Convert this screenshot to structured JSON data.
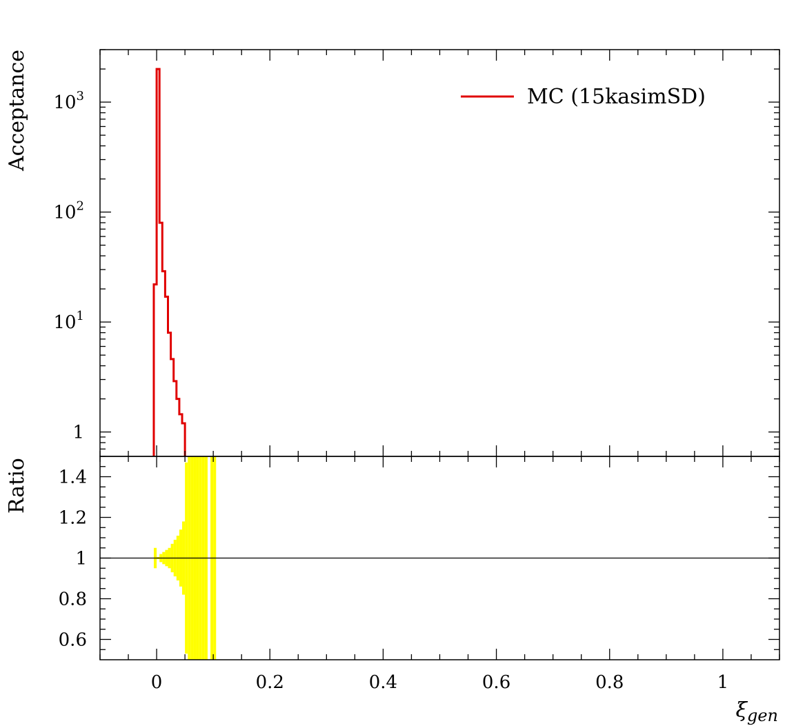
{
  "chart_data": [
    {
      "type": "line",
      "panel": "main",
      "ylabel": "Acceptance",
      "yscale": "log",
      "xlim": [
        -0.1,
        1.1
      ],
      "ylim": [
        0.6,
        3000
      ],
      "yticks": [
        {
          "value": 1,
          "label": "1"
        },
        {
          "value": 10,
          "label": "10",
          "exp": "1"
        },
        {
          "value": 100,
          "label": "10",
          "exp": "2"
        },
        {
          "value": 1000,
          "label": "10",
          "exp": "3"
        }
      ],
      "legend": {
        "position": "top-right",
        "entries": [
          "MC (15kasimSD)"
        ]
      },
      "series": [
        {
          "name": "MC (15kasimSD)",
          "color": "#e00000",
          "drawstyle": "steps",
          "bins": [
            {
              "lo": -0.005,
              "hi": 0.0,
              "y": 22
            },
            {
              "lo": 0.0,
              "hi": 0.005,
              "y": 2000
            },
            {
              "lo": 0.005,
              "hi": 0.01,
              "y": 80
            },
            {
              "lo": 0.01,
              "hi": 0.015,
              "y": 29
            },
            {
              "lo": 0.015,
              "hi": 0.02,
              "y": 17
            },
            {
              "lo": 0.02,
              "hi": 0.025,
              "y": 8
            },
            {
              "lo": 0.025,
              "hi": 0.03,
              "y": 4.6
            },
            {
              "lo": 0.03,
              "hi": 0.035,
              "y": 2.9
            },
            {
              "lo": 0.035,
              "hi": 0.04,
              "y": 2.0
            },
            {
              "lo": 0.04,
              "hi": 0.045,
              "y": 1.45
            },
            {
              "lo": 0.045,
              "hi": 0.05,
              "y": 1.2
            }
          ]
        }
      ],
      "grid": false
    },
    {
      "type": "area",
      "panel": "ratio",
      "ylabel": "Ratio",
      "xlabel": "ξ",
      "xlabel_sub": "gen",
      "xlim": [
        -0.1,
        1.1
      ],
      "ylim": [
        0.5,
        1.5
      ],
      "xticks": [
        {
          "value": 0,
          "label": "0"
        },
        {
          "value": 0.2,
          "label": "0.2"
        },
        {
          "value": 0.4,
          "label": "0.4"
        },
        {
          "value": 0.6,
          "label": "0.6"
        },
        {
          "value": 0.8,
          "label": "0.8"
        },
        {
          "value": 1,
          "label": "1"
        }
      ],
      "yticks": [
        {
          "value": 0.6,
          "label": "0.6"
        },
        {
          "value": 0.8,
          "label": "0.8"
        },
        {
          "value": 1.0,
          "label": "1"
        },
        {
          "value": 1.2,
          "label": "1.2"
        },
        {
          "value": 1.4,
          "label": "1.4"
        }
      ],
      "reference_line": 1,
      "band_color": "#ffff00",
      "band": [
        {
          "lo": -0.005,
          "hi": 0.0,
          "ymin": 0.95,
          "ymax": 1.05
        },
        {
          "lo": 0.0,
          "hi": 0.005,
          "ymin": 0.995,
          "ymax": 1.005
        },
        {
          "lo": 0.005,
          "hi": 0.01,
          "ymin": 0.98,
          "ymax": 1.02
        },
        {
          "lo": 0.01,
          "hi": 0.015,
          "ymin": 0.97,
          "ymax": 1.03
        },
        {
          "lo": 0.015,
          "hi": 0.02,
          "ymin": 0.96,
          "ymax": 1.04
        },
        {
          "lo": 0.02,
          "hi": 0.025,
          "ymin": 0.95,
          "ymax": 1.05
        },
        {
          "lo": 0.025,
          "hi": 0.03,
          "ymin": 0.93,
          "ymax": 1.07
        },
        {
          "lo": 0.03,
          "hi": 0.035,
          "ymin": 0.91,
          "ymax": 1.09
        },
        {
          "lo": 0.035,
          "hi": 0.04,
          "ymin": 0.89,
          "ymax": 1.11
        },
        {
          "lo": 0.04,
          "hi": 0.045,
          "ymin": 0.86,
          "ymax": 1.14
        },
        {
          "lo": 0.045,
          "hi": 0.05,
          "ymin": 0.82,
          "ymax": 1.18
        },
        {
          "lo": 0.05,
          "hi": 0.055,
          "ymin": 0.53,
          "ymax": 1.47
        },
        {
          "lo": 0.055,
          "hi": 0.06,
          "ymin": 0.5,
          "ymax": 1.5
        },
        {
          "lo": 0.06,
          "hi": 0.065,
          "ymin": 0.5,
          "ymax": 1.5
        },
        {
          "lo": 0.065,
          "hi": 0.07,
          "ymin": 0.5,
          "ymax": 1.5
        },
        {
          "lo": 0.07,
          "hi": 0.075,
          "ymin": 0.5,
          "ymax": 1.5
        },
        {
          "lo": 0.075,
          "hi": 0.08,
          "ymin": 0.5,
          "ymax": 1.5
        },
        {
          "lo": 0.08,
          "hi": 0.085,
          "ymin": 0.5,
          "ymax": 1.5
        },
        {
          "lo": 0.085,
          "hi": 0.09,
          "ymin": 0.5,
          "ymax": 1.5
        },
        {
          "lo": 0.095,
          "hi": 0.1,
          "ymin": 0.5,
          "ymax": 1.5
        },
        {
          "lo": 0.1,
          "hi": 0.105,
          "ymin": 0.5,
          "ymax": 1.5
        }
      ],
      "grid": false
    }
  ]
}
